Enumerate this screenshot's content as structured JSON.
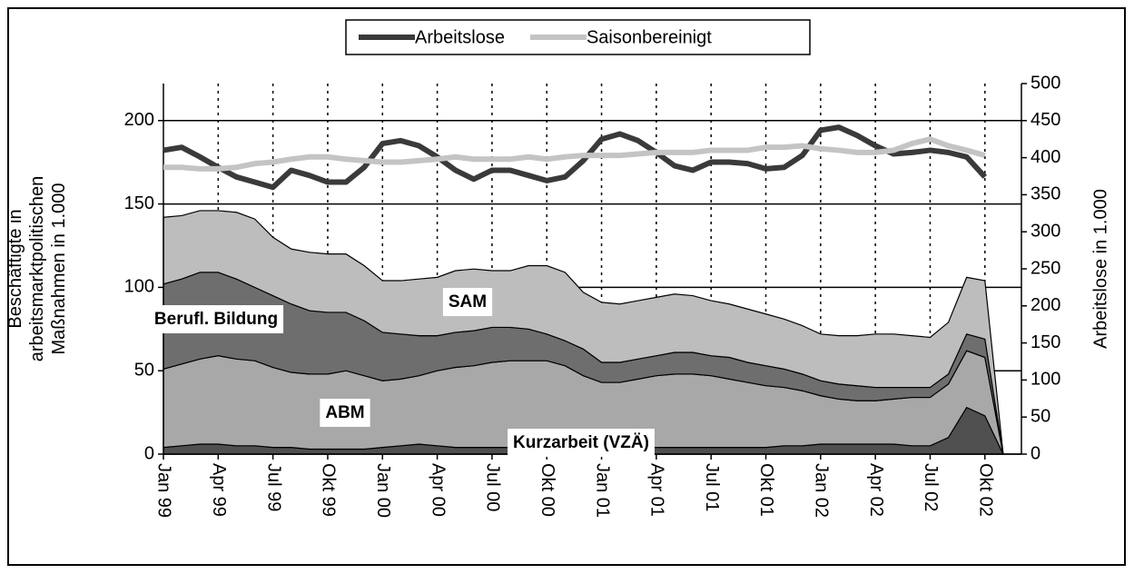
{
  "chart_data": {
    "type": "stacked-area-line",
    "y_label": "Beschäftigte in arbeitsmarktpolitischen Maßnahmen in 1.000",
    "y2_label": "Arbeitslose in 1.000",
    "categories": [
      "Jan 99",
      null,
      null,
      "Apr 99",
      null,
      null,
      "Jul 99",
      null,
      null,
      "Okt 99",
      null,
      null,
      "Jan 00",
      null,
      null,
      "Apr 00",
      null,
      null,
      "Jul 00",
      null,
      null,
      "Okt 00",
      null,
      null,
      "Jan 01",
      null,
      null,
      "Apr 01",
      null,
      null,
      "Jul 01",
      null,
      null,
      "Okt 01",
      null,
      null,
      "Jan 02",
      null,
      null,
      "Apr 02",
      null,
      null,
      "Jul 02",
      null,
      null,
      "Okt 02",
      null,
      null
    ],
    "ylim": [
      0,
      222.2
    ],
    "yticks": [
      0,
      50,
      100,
      150,
      200
    ],
    "y2lim": [
      0,
      500
    ],
    "y2ticks": [
      0,
      50,
      100,
      150,
      200,
      250,
      300,
      350,
      400,
      450,
      500
    ],
    "grid": true,
    "areas": [
      {
        "name": "Kurzarbeit (VZÄ)",
        "color": "#505050",
        "values": [
          4,
          5,
          6,
          6,
          5,
          5,
          4,
          4,
          3,
          3,
          3,
          3,
          4,
          5,
          6,
          5,
          4,
          4,
          4,
          4,
          4,
          4,
          4,
          4,
          4,
          4,
          4,
          4,
          4,
          4,
          4,
          4,
          4,
          4,
          5,
          5,
          6,
          6,
          6,
          6,
          6,
          5,
          5,
          10,
          28,
          23,
          0,
          null
        ]
      },
      {
        "name": "ABM",
        "color": "#a8a8a8",
        "values": [
          47,
          49,
          51,
          53,
          52,
          51,
          48,
          45,
          45,
          45,
          47,
          44,
          40,
          40,
          41,
          45,
          48,
          49,
          51,
          52,
          52,
          52,
          49,
          43,
          39,
          39,
          41,
          43,
          44,
          44,
          43,
          41,
          39,
          37,
          35,
          33,
          29,
          27,
          26,
          26,
          27,
          29,
          29,
          32,
          34,
          35,
          0,
          null
        ]
      },
      {
        "name": "SAM",
        "color": "#6e6e6e",
        "values": [
          51,
          51,
          52,
          50,
          48,
          44,
          43,
          41,
          38,
          37,
          35,
          33,
          29,
          27,
          24,
          21,
          21,
          21,
          21,
          20,
          19,
          16,
          15,
          16,
          12,
          12,
          12,
          12,
          13,
          13,
          12,
          13,
          12,
          12,
          11,
          10,
          9,
          9,
          9,
          8,
          7,
          6,
          6,
          6,
          10,
          11,
          0,
          null
        ]
      },
      {
        "name": "Berufl. Bildung",
        "color": "#bdbdbd",
        "values": [
          40,
          38,
          37,
          37,
          40,
          41,
          35,
          33,
          35,
          35,
          35,
          33,
          31,
          32,
          34,
          35,
          37,
          37,
          34,
          34,
          38,
          41,
          41,
          34,
          36,
          35,
          35,
          35,
          35,
          34,
          33,
          32,
          32,
          31,
          30,
          29,
          28,
          29,
          30,
          32,
          32,
          31,
          30,
          31,
          34,
          35,
          0,
          null
        ]
      }
    ],
    "series": [
      {
        "name": "Arbeitslose",
        "color": "#3a3a3a",
        "axis": "y2",
        "values": [
          410,
          414,
          401,
          387,
          374,
          367,
          360,
          383,
          376,
          367,
          367,
          387,
          419,
          423,
          416,
          401,
          383,
          371,
          383,
          383,
          376,
          369,
          374,
          396,
          425,
          432,
          423,
          407,
          389,
          383,
          394,
          394,
          392,
          385,
          387,
          403,
          437,
          441,
          430,
          416,
          405,
          407,
          410,
          407,
          401,
          374,
          null,
          null
        ]
      },
      {
        "name": "Saisonbereinigt",
        "color": "#c4c4c4",
        "axis": "y2",
        "values": [
          387,
          387,
          385,
          385,
          387,
          392,
          394,
          398,
          401,
          401,
          398,
          396,
          394,
          394,
          396,
          398,
          401,
          398,
          398,
          398,
          401,
          398,
          401,
          403,
          403,
          403,
          405,
          407,
          407,
          407,
          410,
          410,
          410,
          414,
          414,
          416,
          412,
          410,
          407,
          407,
          410,
          419,
          425,
          416,
          410,
          403,
          null,
          null
        ]
      }
    ]
  }
}
